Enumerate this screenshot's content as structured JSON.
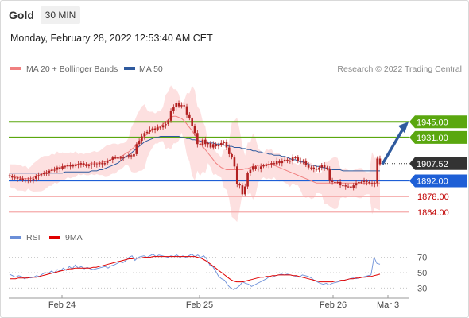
{
  "header": {
    "symbol": "Gold",
    "timeframe": "30 MIN",
    "datetime": "Monday, February 28, 2022 12:53:40 AM CET"
  },
  "legend": {
    "ma20_label": "MA 20 + Bollinger Bands",
    "ma50_label": "MA 50",
    "credit": "Research © 2022 Trading Central",
    "rsi_label": "RSI",
    "rsi_ma_label": "9MA"
  },
  "colors": {
    "ma20": "#f08080",
    "ma50": "#2f5a9e",
    "bollinger_fill": "#fde0e0",
    "candle": "#b22222",
    "resistance": "#5aa70f",
    "pivot": "#1e5fd6",
    "support": "#f4a9a9",
    "support_text": "#c00000",
    "price_box": "#333333",
    "arrow": "#2f5a9e",
    "rsi": "#6b8fd8",
    "rsi_ma": "#e00000"
  },
  "chart_data": [
    {
      "type": "candlestick",
      "x_tick_labels": [
        "Feb 24",
        "Feb 25",
        "Feb 26",
        "Mar 3"
      ],
      "ylim": [
        1856,
        1983
      ],
      "levels": [
        {
          "label": "1945.00",
          "value": 1945,
          "kind": "resistance"
        },
        {
          "label": "1931.00",
          "value": 1931,
          "kind": "resistance"
        },
        {
          "label": "1907.52",
          "value": 1907.52,
          "kind": "last"
        },
        {
          "label": "1892.00",
          "value": 1892,
          "kind": "pivot"
        },
        {
          "label": "1878.00",
          "value": 1878,
          "kind": "support"
        },
        {
          "label": "1864.00",
          "value": 1864,
          "kind": "support"
        }
      ],
      "target_arrow": {
        "from": 1907,
        "to": 1945
      },
      "close": [
        1896,
        1895,
        1895,
        1894,
        1894,
        1893,
        1893,
        1893,
        1892,
        1894,
        1896,
        1897,
        1898,
        1899,
        1899,
        1901,
        1902,
        1902,
        1904,
        1903,
        1905,
        1905,
        1906,
        1905,
        1906,
        1906,
        1907,
        1908,
        1906,
        1906,
        1906,
        1907,
        1906,
        1907,
        1908,
        1907,
        1908,
        1910,
        1911,
        1913,
        1913,
        1912,
        1913,
        1913,
        1914,
        1915,
        1914,
        1916,
        1925,
        1928,
        1932,
        1935,
        1936,
        1938,
        1939,
        1938,
        1940,
        1940,
        1942,
        1943,
        1946,
        1955,
        1958,
        1962,
        1959,
        1960,
        1959,
        1951,
        1948,
        1941,
        1935,
        1925,
        1924,
        1929,
        1925,
        1926,
        1922,
        1925,
        1923,
        1924,
        1926,
        1927,
        1922,
        1916,
        1913,
        1905,
        1889,
        1888,
        1880,
        1887,
        1899,
        1902,
        1905,
        1903,
        1903,
        1905,
        1906,
        1906,
        1907,
        1908,
        1907,
        1910,
        1908,
        1910,
        1911,
        1910,
        1910,
        1913,
        1913,
        1910,
        1910,
        1910,
        1906,
        1904,
        1904,
        1903,
        1902,
        1904,
        1906,
        1904,
        1903,
        1892,
        1891,
        1891,
        1891,
        1888,
        1888,
        1887,
        1887,
        1886,
        1888,
        1890,
        1891,
        1891,
        1892,
        1891,
        1890,
        1889,
        1890,
        1912,
        1907
      ],
      "ma20": [
        1897,
        1896,
        1896,
        1895,
        1895,
        1894,
        1894,
        1894,
        1894,
        1895,
        1896,
        1897,
        1898,
        1899,
        1900,
        1901,
        1902,
        1903,
        1904,
        1904,
        1905,
        1905,
        1906,
        1906,
        1906,
        1907,
        1907,
        1907,
        1907,
        1907,
        1907,
        1908,
        1908,
        1908,
        1908,
        1909,
        1909,
        1910,
        1911,
        1912,
        1912,
        1913,
        1914,
        1915,
        1917,
        1918,
        1920,
        1922,
        1925,
        1928,
        1930,
        1932,
        1934,
        1936,
        1938,
        1939,
        1940,
        1941,
        1943,
        1945,
        1947,
        1949,
        1950,
        1950,
        1949,
        1948,
        1946,
        1943,
        1940,
        1937,
        1933,
        1930,
        1926,
        1923,
        1920,
        1917,
        1914,
        1911,
        1908,
        1906,
        1904,
        1903,
        1902,
        1902,
        1902,
        1902,
        1902,
        1902,
        1902,
        1903,
        1903,
        1904,
        1905,
        1905,
        1906,
        1906,
        1906,
        1907,
        1907,
        1907,
        1906,
        1905,
        1904,
        1903,
        1902,
        1901,
        1900,
        1899,
        1898,
        1897,
        1896,
        1895,
        1894,
        1893,
        1892,
        1891,
        1890,
        1890,
        1890,
        1890,
        1890,
        1890,
        1890,
        1890,
        1890,
        1890,
        1890,
        1890,
        1890,
        1890,
        1890,
        1890,
        1890,
        1890,
        1890,
        1890,
        1890,
        1890,
        1890,
        1890,
        1890
      ],
      "ma50": [
        1899,
        1899,
        1899,
        1899,
        1899,
        1899,
        1899,
        1899,
        1899,
        1899,
        1899,
        1899,
        1899,
        1899,
        1899,
        1899,
        1899,
        1899,
        1899,
        1899,
        1899,
        1900,
        1900,
        1900,
        1900,
        1900,
        1900,
        1900,
        1900,
        1900,
        1900,
        1901,
        1901,
        1901,
        1902,
        1902,
        1903,
        1904,
        1905,
        1906,
        1907,
        1908,
        1910,
        1912,
        1914,
        1915,
        1917,
        1919,
        1921,
        1923,
        1925,
        1927,
        1928,
        1929,
        1930,
        1931,
        1931,
        1932,
        1932,
        1932,
        1932,
        1932,
        1932,
        1932,
        1932,
        1931,
        1931,
        1930,
        1930,
        1929,
        1929,
        1928,
        1928,
        1927,
        1927,
        1926,
        1926,
        1926,
        1925,
        1925,
        1925,
        1924,
        1924,
        1923,
        1923,
        1922,
        1922,
        1922,
        1921,
        1921,
        1920,
        1920,
        1919,
        1919,
        1918,
        1918,
        1917,
        1917,
        1916,
        1916,
        1915,
        1915,
        1915,
        1914,
        1914,
        1913,
        1912,
        1911,
        1911,
        1910,
        1909,
        1909,
        1908,
        1907,
        1906,
        1906,
        1905,
        1905,
        1904,
        1904,
        1903,
        1903,
        1902,
        1902,
        1902,
        1902,
        1901,
        1901,
        1901,
        1901,
        1901,
        1901,
        1901,
        1901,
        1901,
        1901,
        1901,
        1901,
        1901,
        1901,
        1901
      ]
    },
    {
      "type": "line",
      "series": [
        {
          "name": "RSI"
        },
        {
          "name": "9MA"
        }
      ],
      "y_ticks": [
        70,
        50,
        30
      ],
      "ylim": [
        20,
        82
      ],
      "rsi": [
        48,
        46,
        44,
        46,
        45,
        42,
        44,
        43,
        44,
        46,
        45,
        48,
        50,
        49,
        52,
        50,
        54,
        52,
        56,
        53,
        58,
        55,
        60,
        56,
        58,
        55,
        57,
        55,
        54,
        55,
        56,
        57,
        58,
        56,
        59,
        60,
        62,
        64,
        63,
        66,
        70,
        72,
        66,
        70,
        71,
        72,
        70,
        72,
        74,
        71,
        73,
        72,
        71,
        70,
        72,
        71,
        73,
        70,
        72,
        70,
        72,
        74,
        71,
        73,
        70,
        72,
        68,
        60,
        58,
        52,
        45,
        42,
        40,
        34,
        30,
        28,
        30,
        33,
        38,
        36,
        35,
        32,
        34,
        36,
        38,
        40,
        42,
        45,
        44,
        46,
        47,
        48,
        47,
        48,
        47,
        46,
        45,
        44,
        47,
        46,
        45,
        43,
        40,
        38,
        36,
        35,
        36,
        34,
        36,
        37,
        38,
        39,
        40,
        41,
        42,
        43,
        42,
        43,
        44,
        45,
        46,
        47,
        70,
        62,
        61
      ],
      "rsi_ma": [
        42,
        42,
        42,
        43,
        43,
        43,
        43,
        44,
        44,
        44,
        45,
        46,
        47,
        48,
        49,
        50,
        51,
        52,
        53,
        54,
        55,
        55,
        56,
        56,
        56,
        56,
        56,
        56,
        57,
        57,
        58,
        59,
        60,
        61,
        62,
        63,
        64,
        65,
        66,
        67,
        68,
        68,
        69,
        69,
        69,
        70,
        70,
        70,
        71,
        71,
        71,
        71,
        71,
        71,
        71,
        71,
        71,
        71,
        71,
        71,
        71,
        71,
        71,
        70,
        69,
        67,
        65,
        62,
        59,
        56,
        53,
        50,
        47,
        44,
        41,
        39,
        38,
        38,
        38,
        39,
        40,
        41,
        42,
        43,
        44,
        44,
        45,
        45,
        46,
        46,
        47,
        47,
        47,
        47,
        47,
        46,
        46,
        45,
        44,
        43,
        42,
        41,
        40,
        39,
        38,
        38,
        38,
        38,
        38,
        39,
        39,
        40,
        40,
        41,
        42,
        42,
        43,
        43,
        44,
        44,
        45,
        45,
        46,
        47,
        48
      ]
    }
  ]
}
